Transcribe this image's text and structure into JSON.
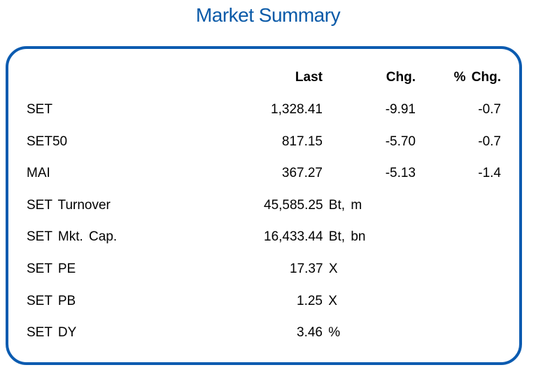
{
  "title": "Market Summary",
  "accent_color": "#0b5bb0",
  "headers": {
    "last": "Last",
    "chg": "Chg.",
    "pct_chg": "% Chg."
  },
  "indices": [
    {
      "name": "SET",
      "last": "1,328.41",
      "chg": "-9.91",
      "pct_chg": "-0.7"
    },
    {
      "name": "SET50",
      "last": "817.15",
      "chg": "-5.70",
      "pct_chg": "-0.7"
    },
    {
      "name": "MAI",
      "last": "367.27",
      "chg": "-5.13",
      "pct_chg": "-1.4"
    }
  ],
  "stats": [
    {
      "label": "SET Turnover",
      "value": "45,585.25 Bt, m"
    },
    {
      "label": "SET Mkt. Cap.",
      "value": "16,433.44 Bt, bn"
    },
    {
      "label": "SET PE",
      "value": "17.37 X"
    },
    {
      "label": "SET PB",
      "value": "1.25 X"
    },
    {
      "label": "SET DY",
      "value": "3.46 %"
    }
  ]
}
